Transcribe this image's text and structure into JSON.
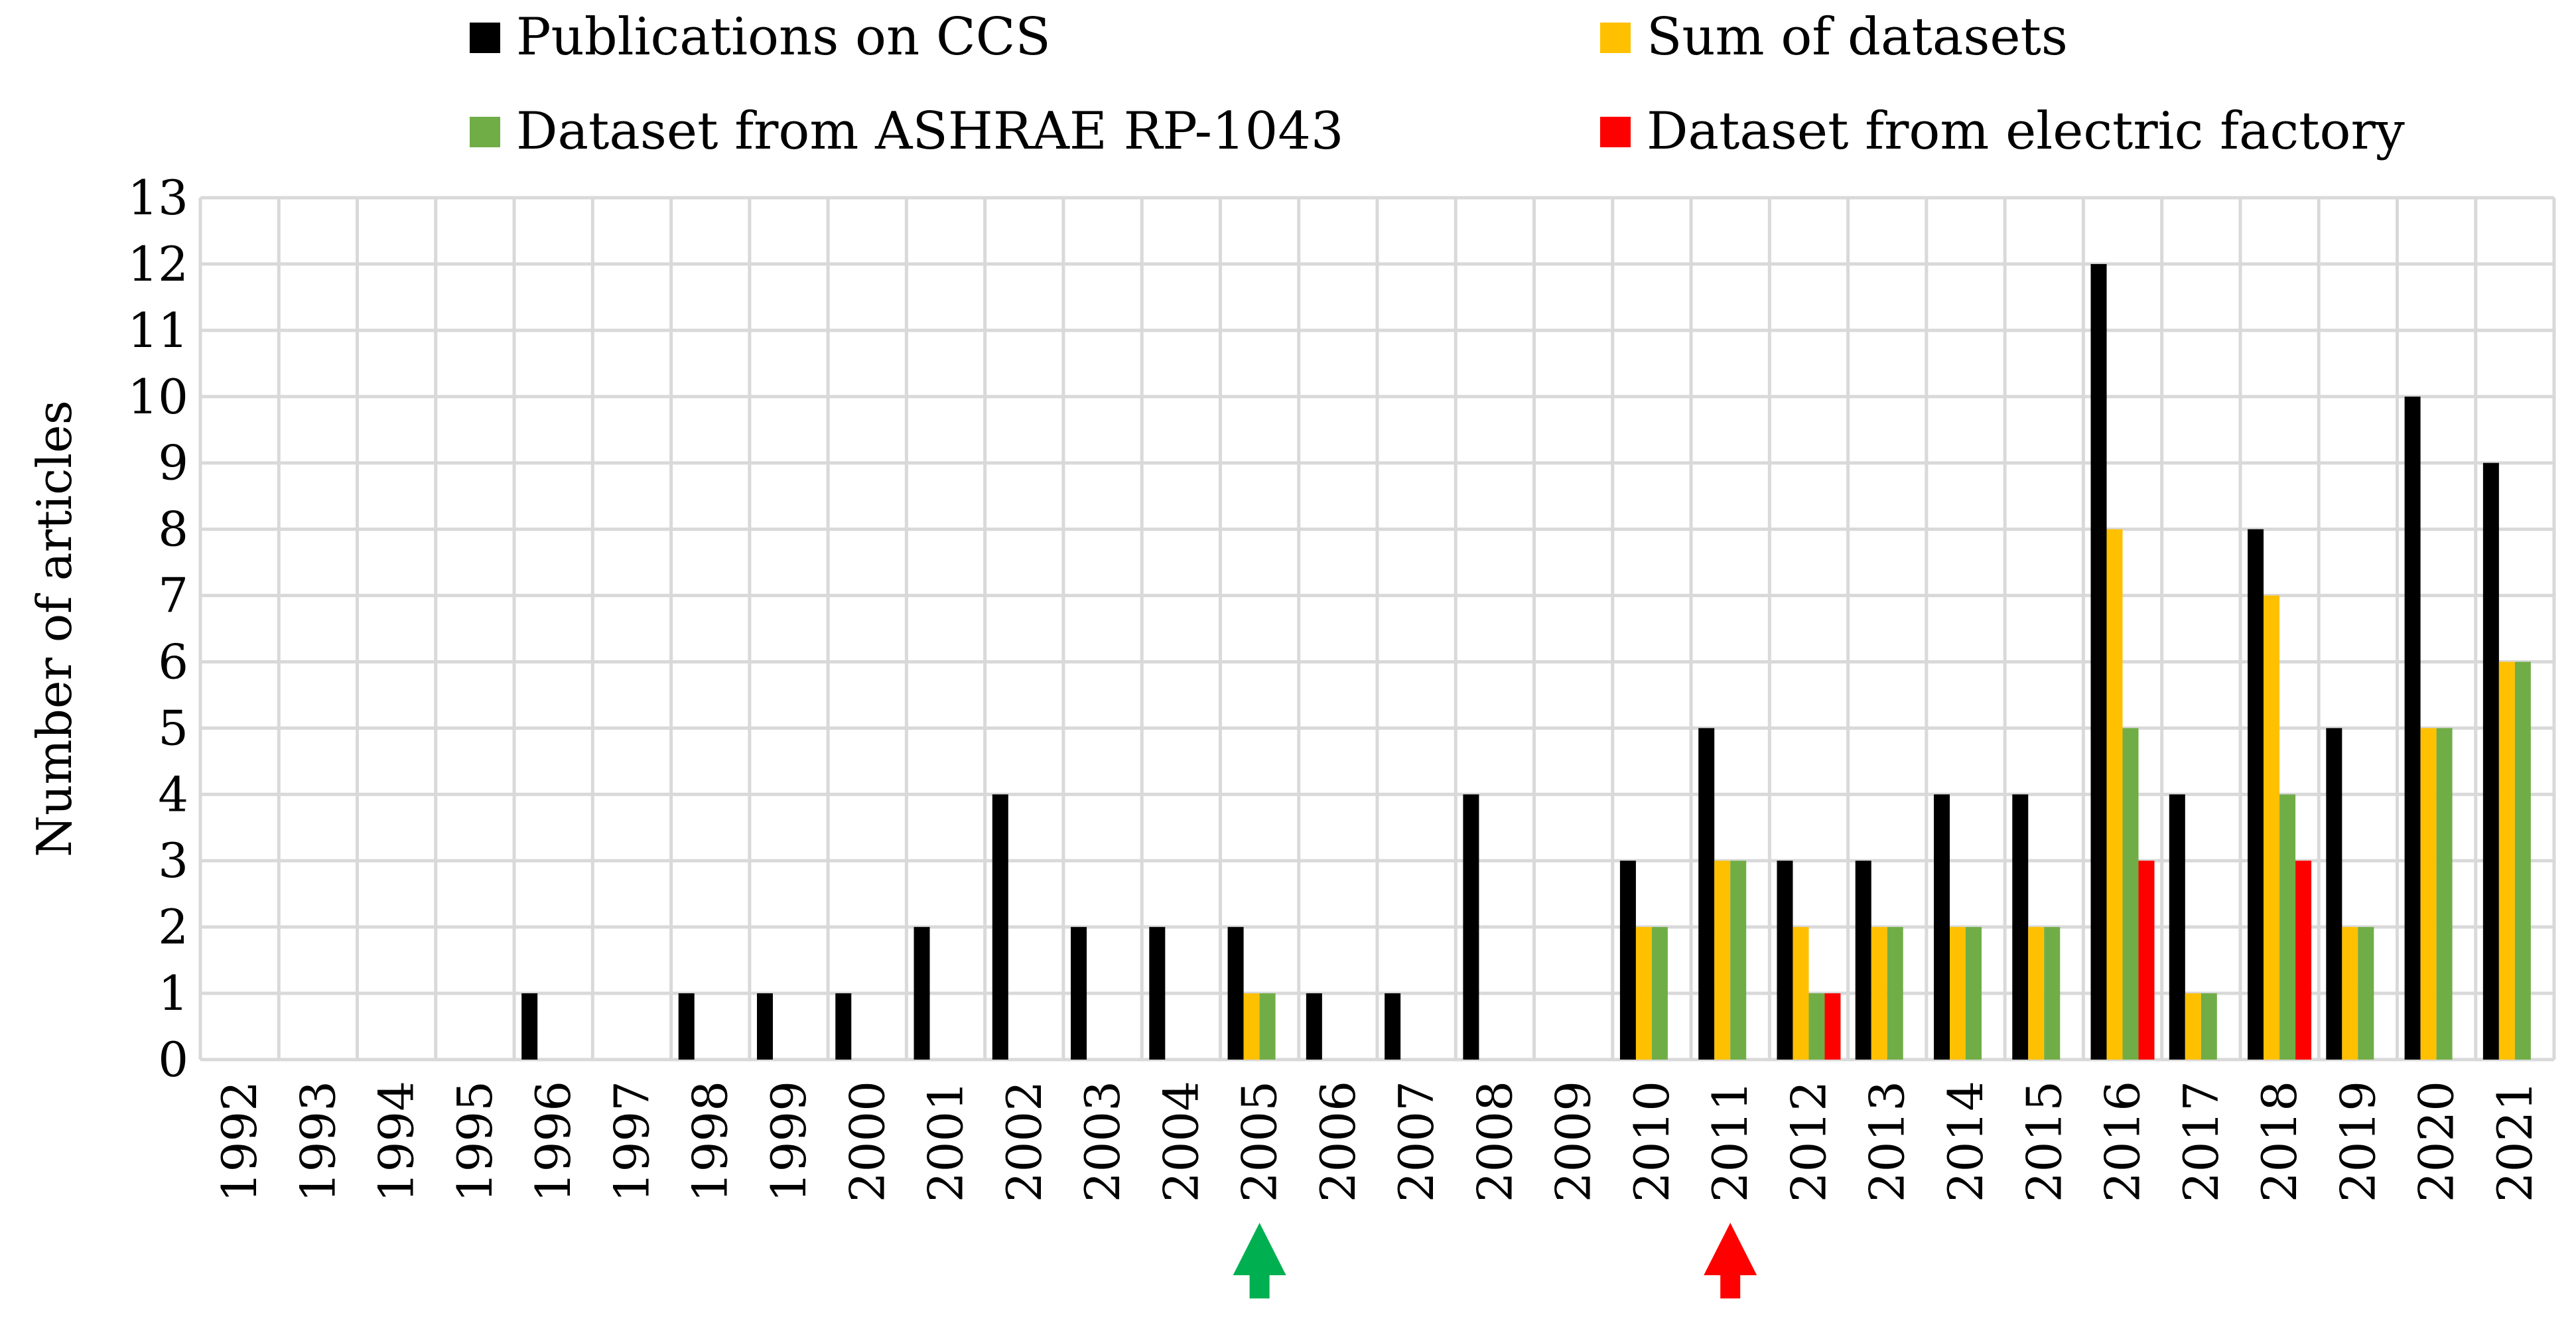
{
  "chart_data": {
    "type": "bar",
    "title": "",
    "xlabel": "",
    "ylabel": "Number of articles",
    "ylim": [
      0,
      13
    ],
    "yticks": [
      "0",
      "1",
      "2",
      "3",
      "4",
      "5",
      "6",
      "7",
      "8",
      "9",
      "10",
      "11",
      "12",
      "13"
    ],
    "grid": true,
    "legend_position": "top",
    "categories": [
      "1992",
      "1993",
      "1994",
      "1995",
      "1996",
      "1997",
      "1998",
      "1999",
      "2000",
      "2001",
      "2002",
      "2003",
      "2004",
      "2005",
      "2006",
      "2007",
      "2008",
      "2009",
      "2010",
      "2011",
      "2012",
      "2013",
      "2014",
      "2015",
      "2016",
      "2017",
      "2018",
      "2019",
      "2020",
      "2021"
    ],
    "series": [
      {
        "name": "Publications on CCS",
        "color": "#000000",
        "values": [
          0,
          0,
          0,
          0,
          1,
          0,
          1,
          1,
          1,
          2,
          4,
          2,
          2,
          2,
          1,
          1,
          4,
          0,
          3,
          5,
          3,
          3,
          4,
          4,
          12,
          4,
          8,
          5,
          10,
          9
        ]
      },
      {
        "name": "Sum of datasets",
        "color": "#FFC000",
        "values": [
          0,
          0,
          0,
          0,
          0,
          0,
          0,
          0,
          0,
          0,
          0,
          0,
          0,
          1,
          0,
          0,
          0,
          0,
          2,
          3,
          2,
          2,
          2,
          2,
          8,
          1,
          7,
          2,
          5,
          6
        ]
      },
      {
        "name": "Dataset from ASHRAE RP-1043",
        "color": "#70AD47",
        "values": [
          0,
          0,
          0,
          0,
          0,
          0,
          0,
          0,
          0,
          0,
          0,
          0,
          0,
          1,
          0,
          0,
          0,
          0,
          2,
          3,
          1,
          2,
          2,
          2,
          5,
          1,
          4,
          2,
          5,
          6
        ]
      },
      {
        "name": "Dataset from electric factory",
        "color": "#FF0000",
        "values": [
          0,
          0,
          0,
          0,
          0,
          0,
          0,
          0,
          0,
          0,
          0,
          0,
          0,
          0,
          0,
          0,
          0,
          0,
          0,
          0,
          1,
          0,
          0,
          0,
          3,
          0,
          3,
          0,
          0,
          0
        ]
      }
    ],
    "annotations": [
      {
        "type": "arrow",
        "at_category": "2005",
        "color": "#00B050"
      },
      {
        "type": "arrow",
        "at_category": "2011",
        "color": "#FF0000"
      }
    ],
    "legend": [
      {
        "label": "Publications on CCS",
        "color": "#000000"
      },
      {
        "label": "Sum of datasets",
        "color": "#FFC000"
      },
      {
        "label": "Dataset from ASHRAE RP-1043",
        "color": "#70AD47"
      },
      {
        "label": "Dataset from electric factory",
        "color": "#FF0000"
      }
    ]
  }
}
